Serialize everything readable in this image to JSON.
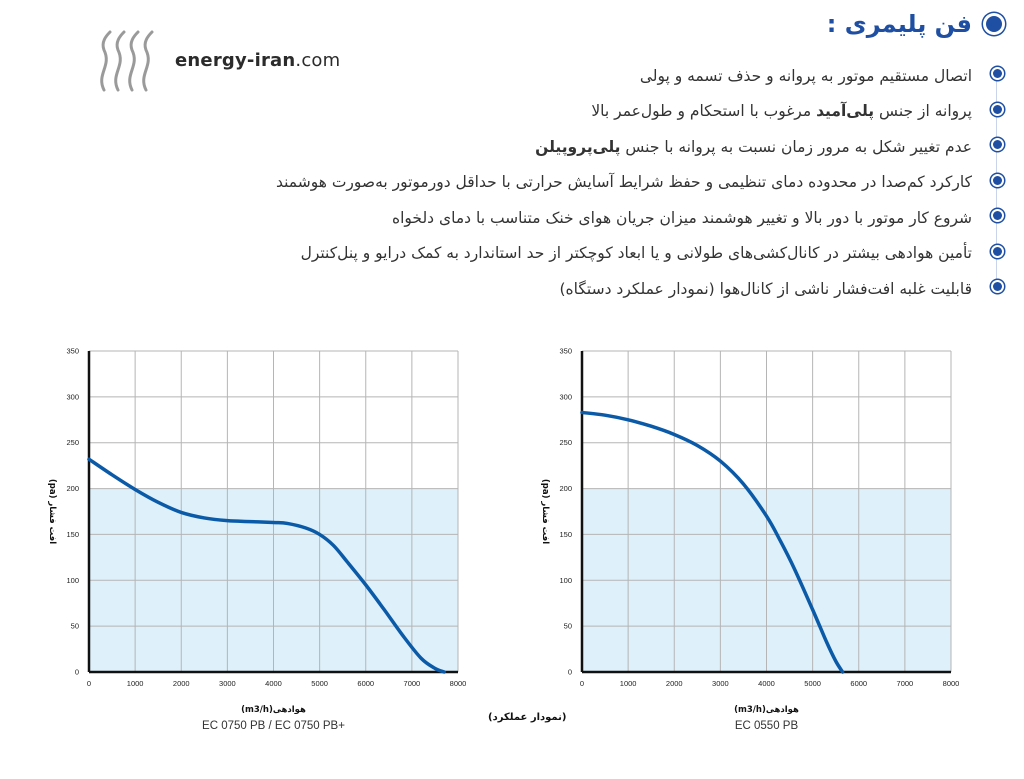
{
  "header": {
    "site_name_bold": "energy-iran",
    "site_name_rest": ".com",
    "logo_icon": "flame-lines-logo",
    "title": "فن پلیمری :"
  },
  "colors": {
    "accent": "#1e4fa3",
    "curve": "#0b5aa8",
    "band": "#def0fa"
  },
  "features": [
    {
      "text": "اتصال مستقیم موتور به پروانه و حذف تسمه و پولی"
    },
    {
      "pre": "پروانه از جنس ",
      "bold": "پلی‌آمید",
      "post": " مرغوب با استحکام و طول‌عمر بالا"
    },
    {
      "pre": "عدم تغییر شکل به مرور زمان نسبت به پروانه با جنس ",
      "bold": "پلی‌پروپیلن",
      "post": ""
    },
    {
      "text": "کارکرد کم‌صدا در محدوده دمای تنظیمی و حفظ شرایط آسایش حرارتی با حداقل دورموتور به‌صورت هوشمند"
    },
    {
      "text": "شروع کار موتور با دور بالا و تغییر هوشمند میزان جریان هوای خنک متناسب با دمای دلخواه"
    },
    {
      "text": "تأمین هوادهی بیشتر در کانال‌کشی‌های طولانی و یا ابعاد کوچکتر از حد استاندارد به کمک درایو و پنل‌کنترل"
    },
    {
      "text": "قابلیت غلبه افت‌فشار ناشی از کانال‌هوا (نمودار عملکرد دستگاه)"
    }
  ],
  "performance_label": "(نمودار عملکرد)",
  "chart_data": [
    {
      "type": "line",
      "model": "EC 0750 PB / EC 0750 PB+",
      "ylabel": "افت فشار (pa)",
      "xlabel_prefix": "هوادهی",
      "xlabel_unit": "(m3/h)",
      "xlim": [
        0,
        8000
      ],
      "ylim": [
        0,
        350
      ],
      "xticks": [
        0,
        1000,
        2000,
        3000,
        4000,
        5000,
        6000,
        7000,
        8000
      ],
      "yticks": [
        0,
        50,
        100,
        150,
        200,
        250,
        300,
        350
      ],
      "grid": true,
      "band": [
        0,
        200
      ],
      "series": [
        {
          "x": [
            0,
            500,
            1000,
            1500,
            2000,
            2500,
            3000,
            3500,
            4000,
            4300,
            4700,
            5000,
            5300,
            5600,
            6000,
            6400,
            6800,
            7200,
            7500,
            7700
          ],
          "y": [
            232,
            215,
            199,
            185,
            174,
            168,
            165,
            164,
            163,
            162,
            157,
            150,
            138,
            120,
            95,
            68,
            40,
            15,
            4,
            0
          ]
        }
      ]
    },
    {
      "type": "line",
      "model": "EC 0550 PB",
      "ylabel": "افت فشار (pa)",
      "xlabel_prefix": "هوادهی",
      "xlabel_unit": "(m3/h)",
      "xlim": [
        0,
        8000
      ],
      "ylim": [
        0,
        350
      ],
      "xticks": [
        0,
        1000,
        2000,
        3000,
        4000,
        5000,
        6000,
        7000,
        8000
      ],
      "yticks": [
        0,
        50,
        100,
        150,
        200,
        250,
        300,
        350
      ],
      "grid": true,
      "band": [
        0,
        200
      ],
      "series": [
        {
          "x": [
            0,
            500,
            1000,
            1500,
            2000,
            2500,
            3000,
            3500,
            4000,
            4300,
            4600,
            5000,
            5300,
            5500,
            5650
          ],
          "y": [
            283,
            280,
            275,
            268,
            259,
            247,
            230,
            205,
            170,
            143,
            113,
            68,
            33,
            12,
            0
          ]
        }
      ]
    }
  ]
}
